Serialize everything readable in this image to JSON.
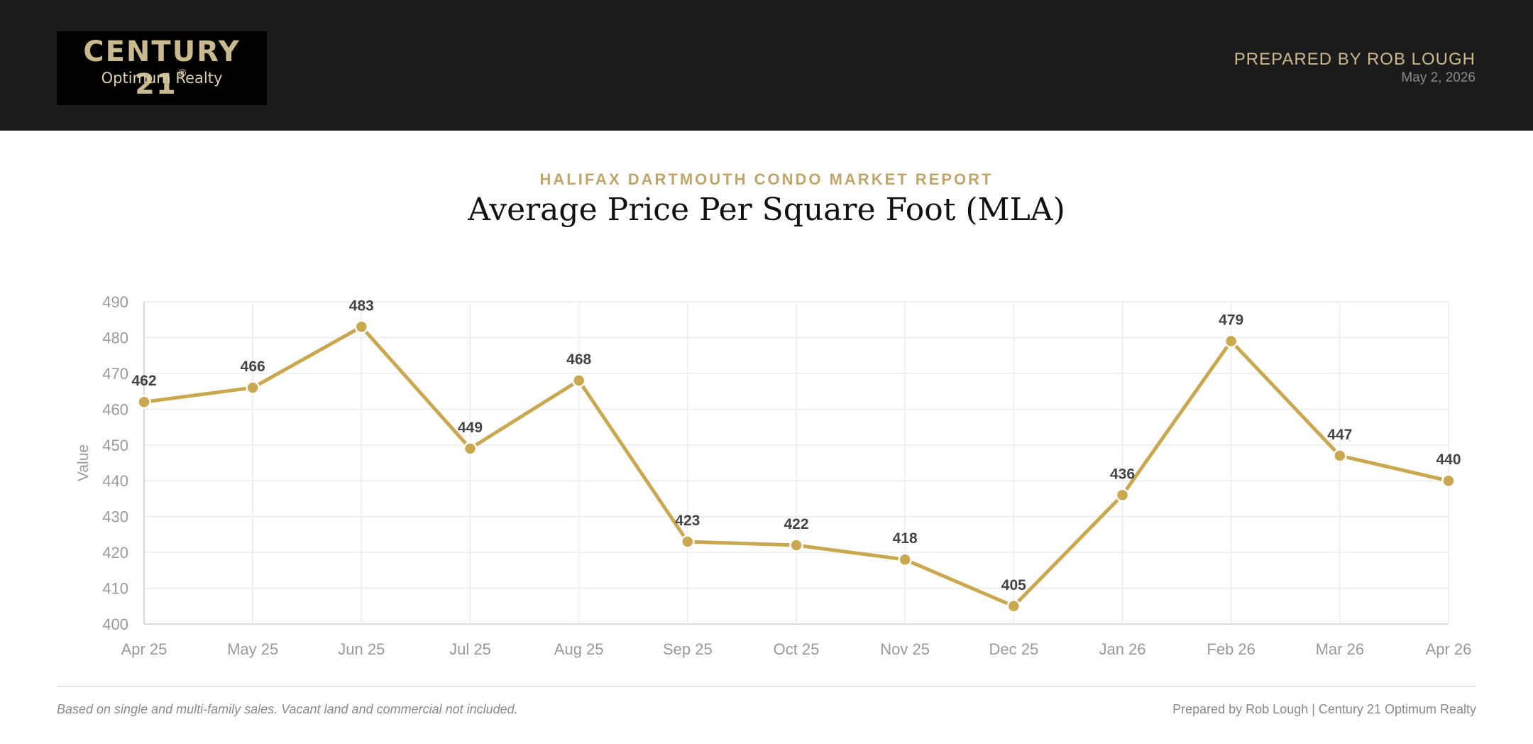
{
  "header": {
    "logo_main": "CENTURY 21",
    "logo_mark": "®",
    "logo_sub": "Optimum Realty",
    "prepared_by": "PREPARED BY ROB LOUGH",
    "date": "May 2, 2026"
  },
  "report": {
    "eyebrow": "HALIFAX DARTMOUTH CONDO MARKET REPORT",
    "title": "Average Price Per Square Foot (MLA)"
  },
  "chart_data": {
    "type": "line",
    "title": "Average Price Per Square Foot (MLA)",
    "xlabel": "",
    "ylabel": "Value",
    "categories": [
      "Apr 25",
      "May 25",
      "Jun 25",
      "Jul 25",
      "Aug 25",
      "Sep 25",
      "Oct 25",
      "Nov 25",
      "Dec 25",
      "Jan 26",
      "Feb 26",
      "Mar 26",
      "Apr 26"
    ],
    "values": [
      462,
      466,
      483,
      449,
      468,
      423,
      422,
      418,
      405,
      436,
      479,
      447,
      440
    ],
    "ylim": [
      400,
      490
    ],
    "yticks": [
      400,
      410,
      420,
      430,
      440,
      450,
      460,
      470,
      480,
      490
    ],
    "grid": true,
    "legend": "none",
    "data_labels": true,
    "line_color": "#c9a84f"
  },
  "footer": {
    "note": "Based on single and multi-family sales. Vacant land and commercial not included.",
    "credit": "Prepared by Rob Lough | Century 21 Optimum Realty"
  }
}
